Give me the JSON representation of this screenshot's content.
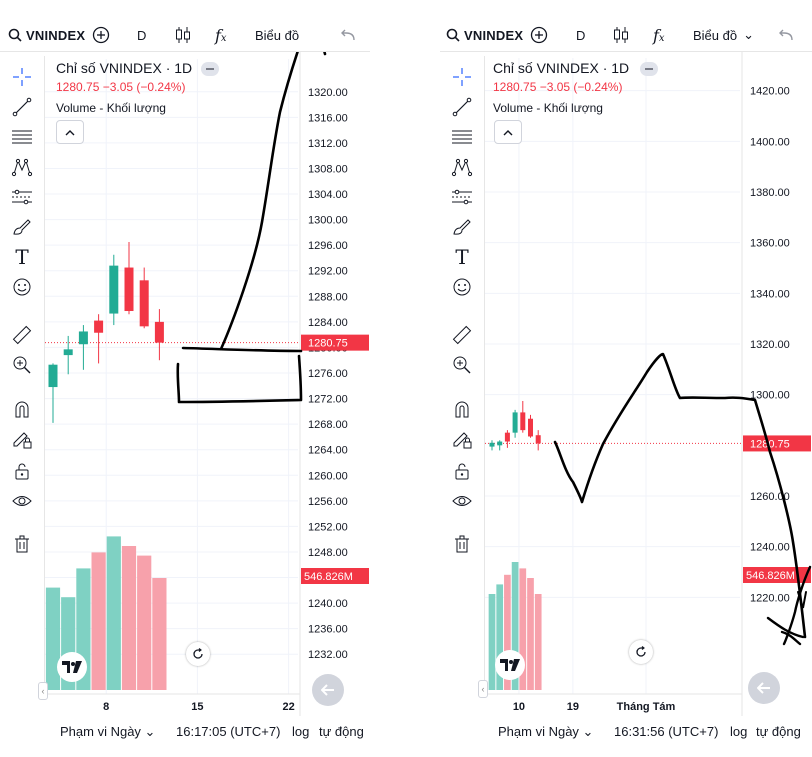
{
  "colors": {
    "up": "#22ab94",
    "down": "#f23645",
    "vol_up": "#7fd1c3",
    "vol_down": "#f7a1ab",
    "ink": "#000000",
    "grid": "#f0f3fa",
    "price_line": "#f23645"
  },
  "left": {
    "toolbar": {
      "symbol": "VNINDEX",
      "interval": "D",
      "chart_menu": "Biểu đồ"
    },
    "legend": {
      "title": "Chỉ số VNINDEX · 1D",
      "change": "1280.75 −3.05 (−0.24%)",
      "volume": "Volume - Khối lượng"
    },
    "price_badge": "1280.75",
    "volume_badge": "546.826M",
    "bottom": {
      "range": "Phạm vi Ngày",
      "time": "16:17:05 (UTC+7)",
      "log": "log",
      "auto": "tự động"
    }
  },
  "right": {
    "toolbar": {
      "symbol": "VNINDEX",
      "interval": "D",
      "chart_menu": "Biểu đồ"
    },
    "legend": {
      "title": "Chỉ số VNINDEX · 1D",
      "change": "1280.75 −3.05 (−0.24%)",
      "volume": "Volume - Khối lượng"
    },
    "price_badge": "1280.75",
    "volume_badge": "546.826M",
    "bottom": {
      "range": "Phạm vi Ngày",
      "time": "16:31:56 (UTC+7)",
      "log": "log",
      "auto": "tự động"
    }
  },
  "chart_data": [
    {
      "type": "candlestick",
      "title": "Chỉ số VNINDEX · 1D",
      "ylim": [
        1230,
        1322
      ],
      "y_ticks": [
        "1320.00",
        "1316.00",
        "1312.00",
        "1308.00",
        "1304.00",
        "1300.00",
        "1296.00",
        "1292.00",
        "1288.00",
        "1284.00",
        "1280.00",
        "1276.00",
        "1272.00",
        "1268.00",
        "1264.00",
        "1260.00",
        "1256.00",
        "1252.00",
        "1248.00",
        "1244.00",
        "1240.00",
        "1236.00",
        "1232.00"
      ],
      "y_tick_values": [
        1320,
        1316,
        1312,
        1308,
        1304,
        1300,
        1296,
        1292,
        1288,
        1284,
        1280,
        1276,
        1272,
        1268,
        1264,
        1260,
        1256,
        1252,
        1248,
        1244,
        1240,
        1236,
        1232
      ],
      "x_ticks": [
        "8",
        "15",
        "22"
      ],
      "x_tick_slots": [
        3.5,
        9.5,
        15.5
      ],
      "last_price": 1280.75,
      "candles": [
        {
          "o": 1273.8,
          "h": 1277.5,
          "l": 1268.2,
          "c": 1277.3,
          "dir": "up",
          "vol": 0.32
        },
        {
          "o": 1278.8,
          "h": 1281.8,
          "l": 1275.8,
          "c": 1279.7,
          "dir": "up",
          "vol": 0.29
        },
        {
          "o": 1280.5,
          "h": 1283.5,
          "l": 1276.5,
          "c": 1282.5,
          "dir": "up",
          "vol": 0.38
        },
        {
          "o": 1282.3,
          "h": 1285.2,
          "l": 1277.5,
          "c": 1284.2,
          "dir": "down",
          "vol": 0.43
        },
        {
          "o": 1285.3,
          "h": 1294.5,
          "l": 1283.5,
          "c": 1292.8,
          "dir": "up",
          "vol": 0.48
        },
        {
          "o": 1292.5,
          "h": 1296.5,
          "l": 1285.2,
          "c": 1285.7,
          "dir": "down",
          "vol": 0.45
        },
        {
          "o": 1290.5,
          "h": 1292.5,
          "l": 1283.0,
          "c": 1283.3,
          "dir": "down",
          "vol": 0.42
        },
        {
          "o": 1284.0,
          "h": 1286.0,
          "l": 1278.0,
          "c": 1280.75,
          "dir": "down",
          "vol": 0.35
        }
      ]
    },
    {
      "type": "candlestick",
      "title": "Chỉ số VNINDEX · 1D",
      "ylim": [
        1200,
        1425
      ],
      "y_ticks": [
        "1420.00",
        "1400.00",
        "1380.00",
        "1360.00",
        "1340.00",
        "1320.00",
        "1300.00",
        "1260.00",
        "1240.00",
        "1220.00"
      ],
      "y_tick_values": [
        1420,
        1400,
        1380,
        1360,
        1340,
        1320,
        1300,
        1260,
        1240,
        1220
      ],
      "x_ticks": [
        "10",
        "19",
        "Tháng Tám"
      ],
      "x_tick_slots": [
        3.5,
        10.5,
        20
      ],
      "last_price": 1280.75,
      "candles": [
        {
          "o": 1279.5,
          "h": 1282,
          "l": 1278,
          "c": 1281,
          "dir": "up",
          "vol": 0.3
        },
        {
          "o": 1280,
          "h": 1282,
          "l": 1278,
          "c": 1281.5,
          "dir": "up",
          "vol": 0.33
        },
        {
          "o": 1281.5,
          "h": 1286,
          "l": 1279,
          "c": 1285,
          "dir": "down",
          "vol": 0.36
        },
        {
          "o": 1285,
          "h": 1294,
          "l": 1283,
          "c": 1293,
          "dir": "up",
          "vol": 0.4
        },
        {
          "o": 1293,
          "h": 1297.5,
          "l": 1285,
          "c": 1286,
          "dir": "down",
          "vol": 0.38
        },
        {
          "o": 1290.5,
          "h": 1292,
          "l": 1283,
          "c": 1283.5,
          "dir": "down",
          "vol": 0.35
        },
        {
          "o": 1284,
          "h": 1286,
          "l": 1278,
          "c": 1280.75,
          "dir": "down",
          "vol": 0.3
        }
      ]
    }
  ]
}
